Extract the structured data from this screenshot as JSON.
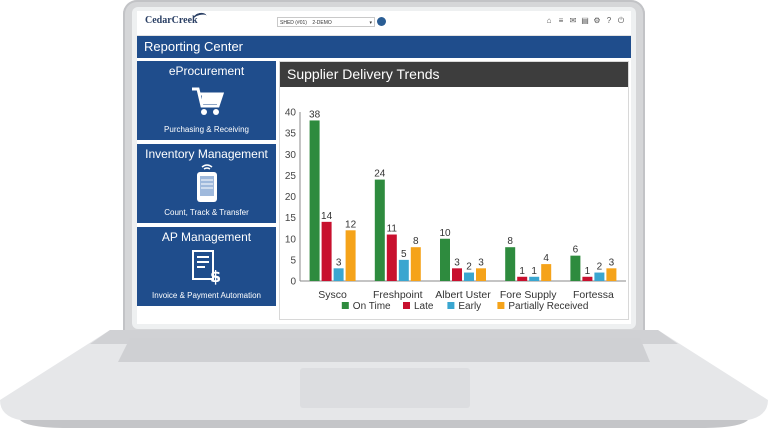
{
  "app": {
    "logo_text": "CedarCreek",
    "location_prefix": "SHED (#01)",
    "location_value": "2-DEMO",
    "page_title": "Reporting Center"
  },
  "tiles": [
    {
      "title": "eProcurement",
      "subtitle": "Purchasing & Receiving",
      "icon": "shopping-cart-icon"
    },
    {
      "title": "Inventory Management",
      "subtitle": "Count, Track & Transfer",
      "icon": "mobile-device-icon"
    },
    {
      "title": "AP Management",
      "subtitle": "Invoice & Payment Automation",
      "icon": "invoice-dollar-icon"
    }
  ],
  "top_icons": [
    "home-icon",
    "list-icon",
    "mail-icon",
    "document-icon",
    "gear-icon",
    "help-icon",
    "power-icon"
  ],
  "colors": {
    "brand_blue": "#1f4d8c",
    "header_dark": "#3d3d3d"
  },
  "chart_data": {
    "type": "bar",
    "title": "Supplier Delivery Trends",
    "categories": [
      "Sysco",
      "Freshpoint",
      "Albert Uster",
      "Fore Supply",
      "Fortessa"
    ],
    "series": [
      {
        "name": "On Time",
        "color": "#2e8b3e",
        "values": [
          38,
          24,
          10,
          8,
          6
        ]
      },
      {
        "name": "Late",
        "color": "#c8102e",
        "values": [
          14,
          11,
          3,
          1,
          1
        ]
      },
      {
        "name": "Early",
        "color": "#3aa6d0",
        "values": [
          3,
          5,
          2,
          1,
          2
        ]
      },
      {
        "name": "Partially Received",
        "color": "#f5a31a",
        "values": [
          12,
          8,
          3,
          4,
          3
        ]
      }
    ],
    "ylim": [
      0,
      40
    ],
    "yticks": [
      0,
      5,
      10,
      15,
      20,
      25,
      30,
      35,
      40
    ],
    "grid": false,
    "legend_position": "bottom"
  }
}
